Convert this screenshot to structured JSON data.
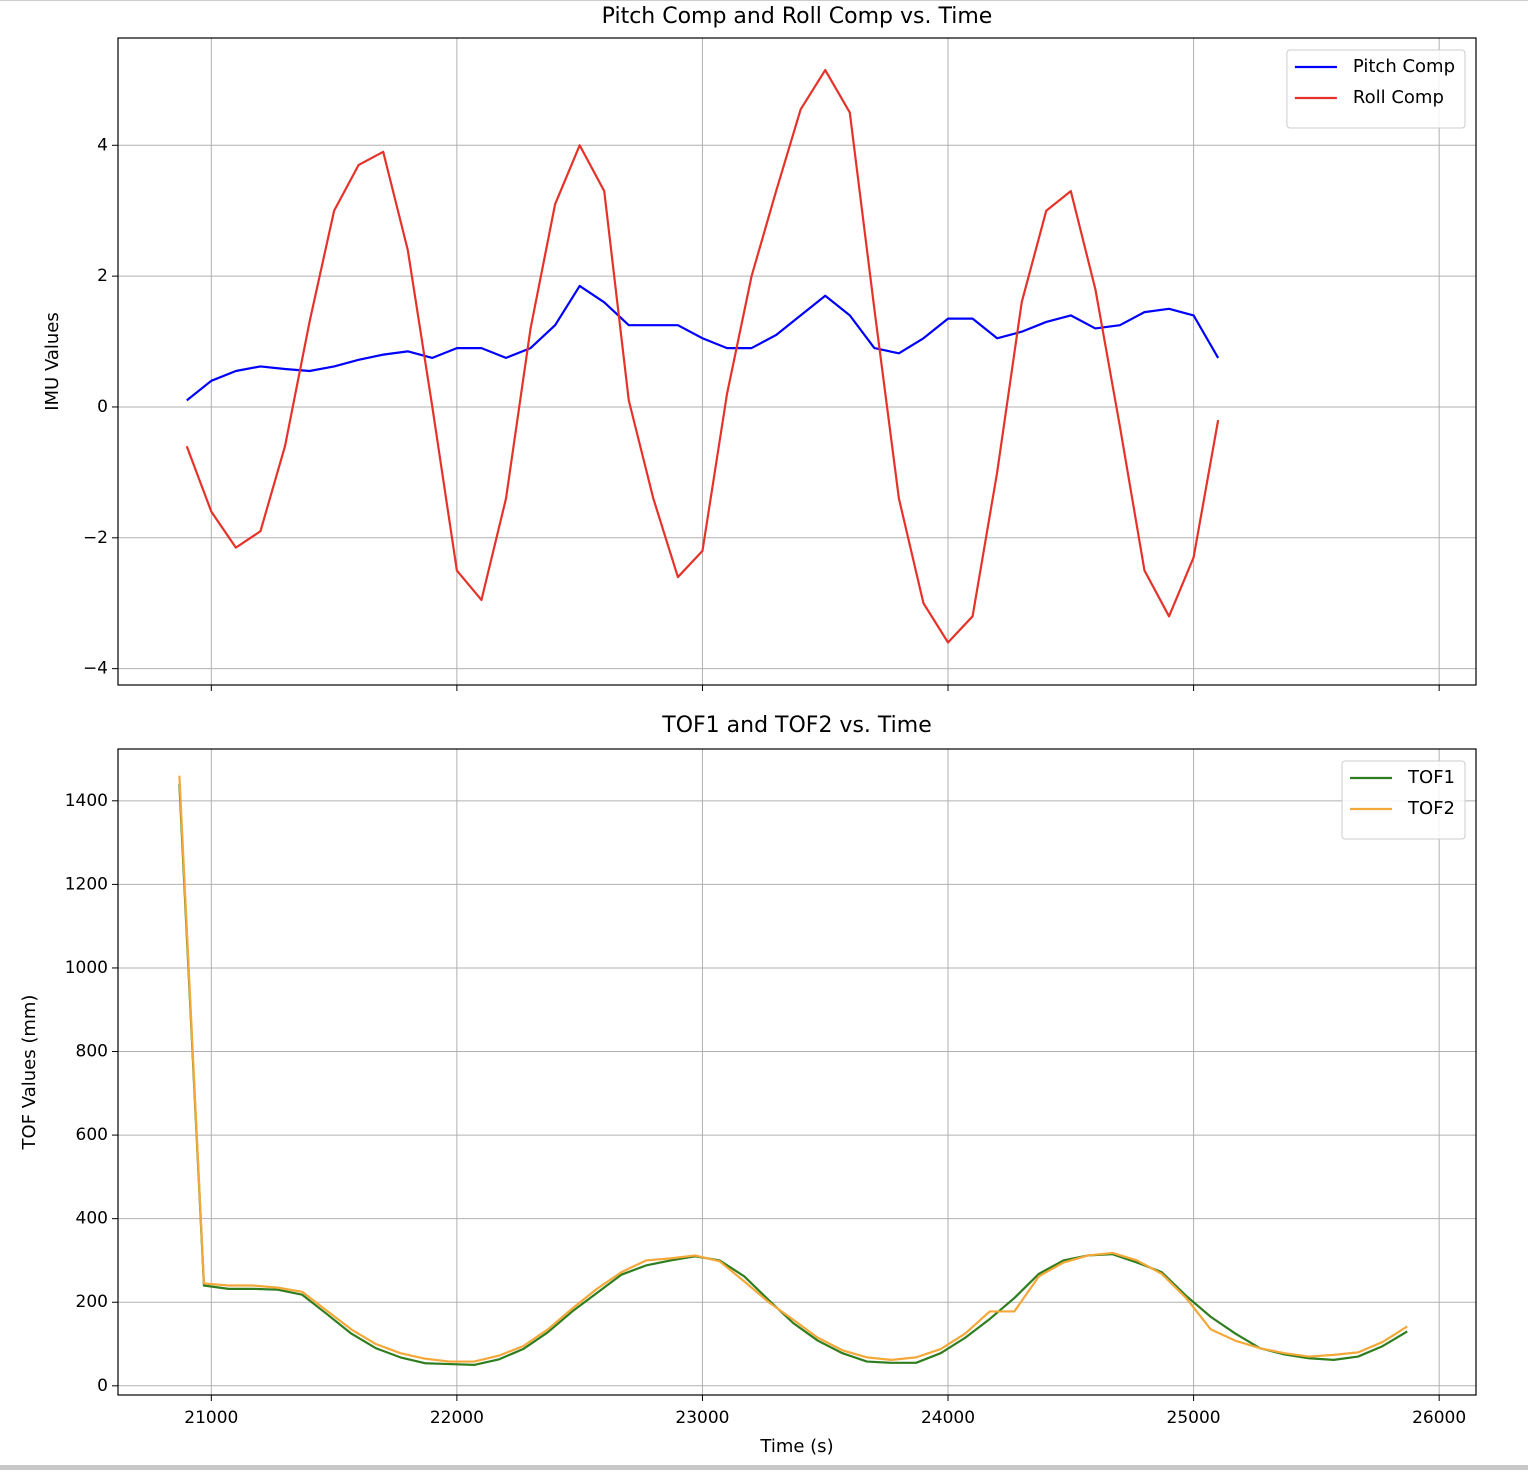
{
  "chart_data": [
    {
      "type": "line",
      "title": "Pitch Comp and Roll Comp vs. Time",
      "ylabel": "IMU Values",
      "x": [
        20900,
        21000,
        21100,
        21200,
        21300,
        21400,
        21500,
        21600,
        21700,
        21800,
        21900,
        22000,
        22100,
        22200,
        22300,
        22400,
        22500,
        22600,
        22700,
        22800,
        22900,
        23000,
        23100,
        23200,
        23300,
        23400,
        23500,
        23600,
        23700,
        23800,
        23900,
        24000,
        24100,
        24200,
        24300,
        24400,
        24500,
        24600,
        24700,
        24800,
        24900,
        25000,
        25100
      ],
      "series": [
        {
          "name": "Pitch Comp",
          "color": "#0000ff",
          "values": [
            0.1,
            0.4,
            0.55,
            0.62,
            0.58,
            0.55,
            0.62,
            0.72,
            0.8,
            0.85,
            0.75,
            0.9,
            0.9,
            0.75,
            0.9,
            1.25,
            1.85,
            1.6,
            1.25,
            1.25,
            1.25,
            1.05,
            0.9,
            0.9,
            1.1,
            1.4,
            1.7,
            1.4,
            0.9,
            0.82,
            1.05,
            1.35,
            1.35,
            1.05,
            1.15,
            1.3,
            1.4,
            1.2,
            1.25,
            1.45,
            1.5,
            1.4,
            0.75
          ]
        },
        {
          "name": "Roll Comp",
          "color": "#e5332a",
          "values": [
            -0.6,
            -1.6,
            -2.15,
            -1.9,
            -0.6,
            1.3,
            3.0,
            3.7,
            3.9,
            2.4,
            0.0,
            -2.5,
            -2.95,
            -1.4,
            1.2,
            3.1,
            4.0,
            3.3,
            0.1,
            -1.4,
            -2.6,
            -2.2,
            0.2,
            2.0,
            3.3,
            4.55,
            5.15,
            4.5,
            1.5,
            -1.4,
            -3.0,
            -3.6,
            -3.2,
            -1.0,
            1.6,
            3.0,
            3.3,
            1.8,
            -0.3,
            -2.5,
            -3.2,
            -2.3,
            -0.2
          ]
        }
      ],
      "xlim": [
        20620,
        26150
      ],
      "ylim": [
        -4.25,
        5.64
      ],
      "xticks": [
        21000,
        22000,
        23000,
        24000,
        25000,
        26000
      ],
      "yticks": [
        {
          "value": -4,
          "label": "−4"
        },
        {
          "value": -2,
          "label": "−2"
        },
        0,
        2,
        4
      ],
      "grid": true,
      "legend": "upper right"
    },
    {
      "type": "line",
      "title": "TOF1 and TOF2 vs. Time",
      "xlabel": "Time (s)",
      "ylabel": "TOF Values (mm)",
      "x": [
        20870,
        20970,
        21070,
        21170,
        21270,
        21370,
        21470,
        21570,
        21670,
        21770,
        21870,
        21970,
        22070,
        22170,
        22270,
        22370,
        22470,
        22570,
        22670,
        22770,
        22870,
        22970,
        23070,
        23170,
        23270,
        23370,
        23470,
        23570,
        23670,
        23770,
        23870,
        23970,
        24070,
        24170,
        24270,
        24370,
        24470,
        24570,
        24670,
        24770,
        24870,
        24970,
        25070,
        25170,
        25270,
        25370,
        25470,
        25570,
        25670,
        25770,
        25870
      ],
      "series": [
        {
          "name": "TOF1",
          "color": "#2e7d1e",
          "values": [
            1440,
            240,
            232,
            232,
            230,
            218,
            172,
            125,
            90,
            68,
            54,
            52,
            50,
            63,
            88,
            128,
            178,
            222,
            266,
            288,
            300,
            310,
            300,
            262,
            205,
            150,
            108,
            78,
            58,
            55,
            55,
            78,
            115,
            160,
            210,
            268,
            300,
            312,
            315,
            295,
            272,
            215,
            165,
            125,
            90,
            75,
            66,
            62,
            70,
            95,
            130
          ]
        },
        {
          "name": "TOF2",
          "color": "#f5a83a",
          "values": [
            1460,
            245,
            240,
            240,
            235,
            225,
            180,
            135,
            100,
            78,
            65,
            58,
            58,
            72,
            95,
            135,
            185,
            232,
            272,
            300,
            305,
            312,
            298,
            250,
            200,
            158,
            115,
            85,
            68,
            62,
            68,
            88,
            125,
            178,
            178,
            262,
            295,
            312,
            318,
            300,
            268,
            210,
            135,
            108,
            90,
            78,
            70,
            74,
            80,
            105,
            142
          ]
        }
      ],
      "xlim": [
        20620,
        26150
      ],
      "ylim": [
        -22,
        1524
      ],
      "xticks": [
        21000,
        22000,
        23000,
        24000,
        25000,
        26000
      ],
      "yticks": [
        0,
        200,
        400,
        600,
        800,
        1000,
        1200,
        1400
      ],
      "grid": true,
      "legend": "upper right"
    }
  ]
}
